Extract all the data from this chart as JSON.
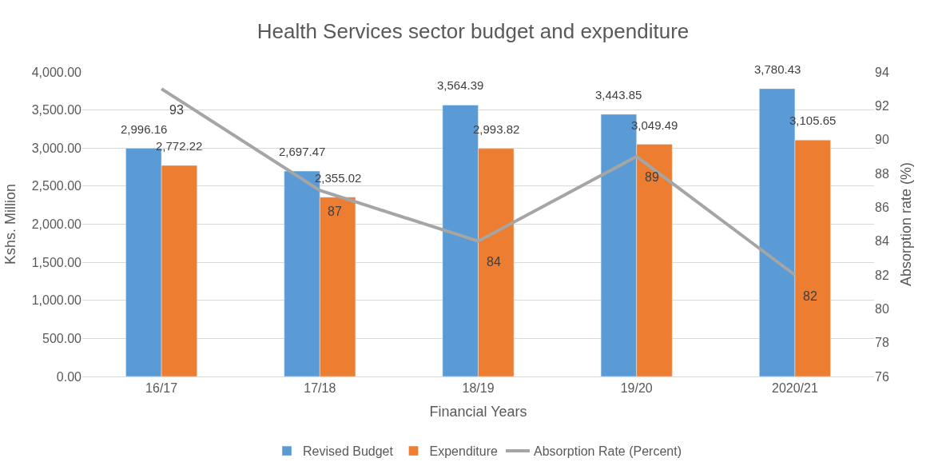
{
  "chart_data": {
    "type": "bar",
    "title": "Health Services sector budget and expenditure",
    "xlabel": "Financial Years",
    "ylabel": "Kshs. Million",
    "y2label": "Absorption rate (%)",
    "categories": [
      "16/17",
      "17/18",
      "18/19",
      "19/20",
      "2020/21"
    ],
    "series": [
      {
        "name": "Revised Budget",
        "color": "#5b9bd5",
        "values": [
          2996.16,
          2697.47,
          3564.39,
          3443.85,
          3780.43
        ],
        "value_labels": [
          "2,996.16",
          "2,697.47",
          "3,564.39",
          "3,443.85",
          "3,780.43"
        ]
      },
      {
        "name": "Expenditure",
        "color": "#ed7d31",
        "values": [
          2772.22,
          2355.02,
          2993.82,
          3049.49,
          3105.65
        ],
        "value_labels": [
          "2,772.22",
          "2,355.02",
          "2,993.82",
          "3,049.49",
          "3,105.65"
        ]
      },
      {
        "name": "Absorption Rate (Percent)",
        "type": "line",
        "axis": "y2",
        "color": "#a5a5a5",
        "values": [
          93,
          87,
          84,
          89,
          82
        ],
        "value_labels": [
          "93",
          "87",
          "84",
          "89",
          "82"
        ]
      }
    ],
    "ylim": [
      0,
      4000
    ],
    "yticks": [
      {
        "value": 0,
        "label": "0.00"
      },
      {
        "value": 500,
        "label": "500.00"
      },
      {
        "value": 1000,
        "label": "1,000.00"
      },
      {
        "value": 1500,
        "label": "1,500.00"
      },
      {
        "value": 2000,
        "label": "2,000.00"
      },
      {
        "value": 2500,
        "label": "2,500.00"
      },
      {
        "value": 3000,
        "label": "3,000.00"
      },
      {
        "value": 3500,
        "label": "3,500.00"
      },
      {
        "value": 4000,
        "label": "4,000.00"
      }
    ],
    "y2lim": [
      76,
      94
    ],
    "y2ticks": [
      76,
      78,
      80,
      82,
      84,
      86,
      88,
      90,
      92,
      94
    ],
    "grid": "y",
    "legend": "bottom",
    "marker": "none",
    "line_style": "solid"
  }
}
